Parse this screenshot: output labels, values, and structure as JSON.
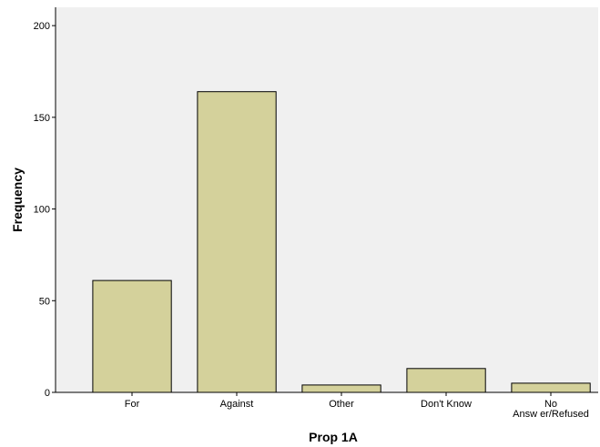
{
  "chart_data": {
    "type": "bar",
    "title": "",
    "xlabel": "Prop 1A",
    "ylabel": "Frequency",
    "categories": [
      [
        "For"
      ],
      [
        "Against"
      ],
      [
        "Other"
      ],
      [
        "Don't Know"
      ],
      [
        "No",
        "Answ er/Refused"
      ]
    ],
    "values": [
      61,
      164,
      4,
      13,
      5
    ],
    "ylim": [
      0,
      210
    ],
    "yticks": [
      0,
      50,
      100,
      150,
      200
    ],
    "grid": false,
    "colors": {
      "bar_fill": "#d4d19b",
      "bar_stroke": "#000000",
      "plot_background": "#f0f0f0",
      "page_background": "#ffffff"
    }
  }
}
